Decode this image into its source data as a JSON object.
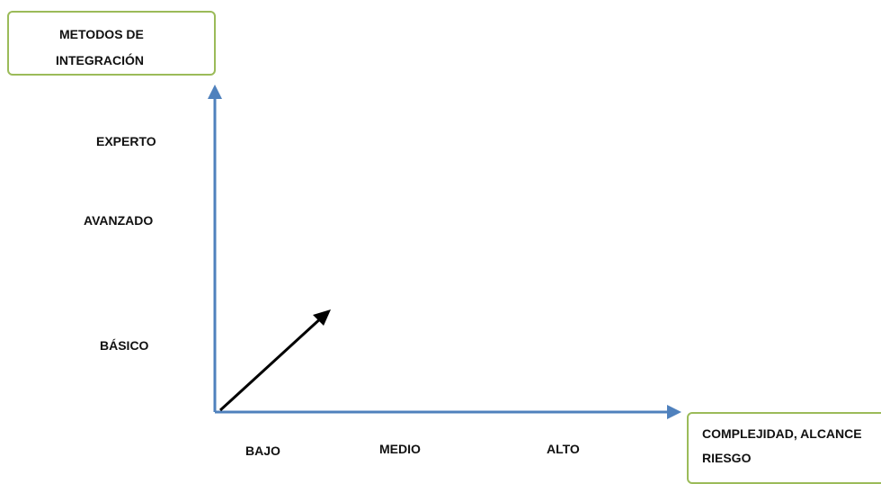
{
  "y_axis_title": {
    "line1": "METODOS DE",
    "line2": "INTEGRACIÓN"
  },
  "x_axis_title": {
    "line1": "COMPLEJIDAD, ALCANCE",
    "line2": "RIESGO"
  },
  "y_levels": [
    "EXPERTO",
    "AVANZADO",
    "BÁSICO"
  ],
  "x_levels": [
    "BAJO",
    "MEDIO",
    "ALTO"
  ],
  "colors": {
    "axis": "#4f81bd",
    "box_border": "#9bbb59",
    "arrow": "#000000"
  }
}
